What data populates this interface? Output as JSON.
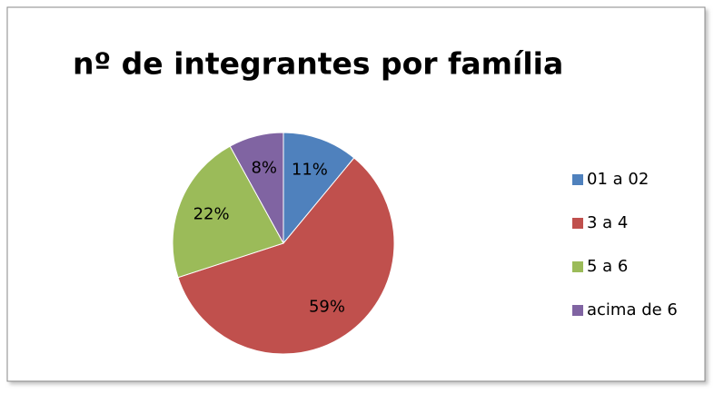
{
  "chart_data": {
    "type": "pie",
    "title": "nº de integrantes por família",
    "categories": [
      "01 a 02",
      "3 a 4",
      "5 a 6",
      "acima de 6"
    ],
    "values": [
      11,
      59,
      22,
      8
    ],
    "value_labels": [
      "11%",
      "59%",
      "22%",
      "8%"
    ],
    "colors": [
      "#4f81bd",
      "#c0504d",
      "#9bbb59",
      "#8064a2"
    ],
    "legend": "right"
  }
}
